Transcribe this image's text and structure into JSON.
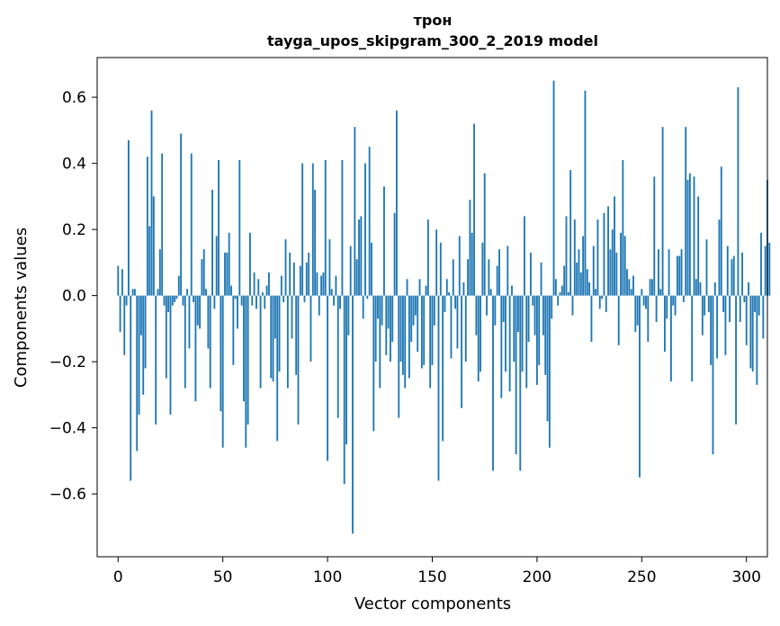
{
  "chart_data": {
    "type": "bar",
    "title": "трон",
    "subtitle": "tayga_upos_skipgram_300_2_2019 model",
    "xlabel": "Vector components",
    "ylabel": "Components values",
    "xlim": [
      -10,
      310
    ],
    "ylim": [
      -0.79,
      0.72
    ],
    "xticks": [
      0,
      50,
      100,
      150,
      200,
      250,
      300
    ],
    "xtick_labels": [
      "0",
      "50",
      "100",
      "150",
      "200",
      "250",
      "300"
    ],
    "yticks": [
      -0.6,
      -0.4,
      -0.2,
      0.0,
      0.2,
      0.4,
      0.6
    ],
    "ytick_labels": [
      "−0.6",
      "−0.4",
      "−0.2",
      "0.0",
      "0.2",
      "0.4",
      "0.6"
    ],
    "bar_color": "#1f77b4",
    "series": [
      {
        "name": "трон",
        "values": [
          0.09,
          -0.11,
          0.08,
          -0.18,
          -0.03,
          0.47,
          -0.56,
          0.02,
          0.02,
          -0.47,
          -0.36,
          -0.12,
          -0.3,
          -0.22,
          0.42,
          0.21,
          0.56,
          0.3,
          -0.39,
          0.02,
          0.14,
          0.43,
          -0.03,
          -0.25,
          -0.05,
          -0.36,
          -0.03,
          -0.02,
          -0.01,
          0.06,
          0.49,
          -0.03,
          -0.28,
          0.02,
          -0.16,
          0.43,
          -0.02,
          -0.32,
          -0.09,
          -0.1,
          0.11,
          0.14,
          0.02,
          -0.16,
          -0.28,
          0.32,
          -0.04,
          0.18,
          0.41,
          -0.35,
          -0.46,
          0.13,
          0.13,
          0.19,
          0.03,
          -0.21,
          -0.01,
          -0.1,
          0.41,
          -0.03,
          -0.32,
          -0.46,
          -0.39,
          0.19,
          -0.03,
          0.07,
          -0.04,
          0.05,
          -0.28,
          0.01,
          -0.04,
          0.03,
          0.07,
          -0.25,
          -0.26,
          -0.13,
          -0.44,
          -0.23,
          0.06,
          -0.02,
          0.17,
          -0.28,
          0.13,
          -0.13,
          0.1,
          -0.24,
          -0.39,
          0.09,
          0.4,
          -0.02,
          0.1,
          0.13,
          -0.2,
          0.4,
          0.32,
          0.07,
          -0.06,
          0.06,
          0.07,
          0.41,
          -0.5,
          0.17,
          0.02,
          -0.03,
          0.06,
          -0.37,
          -0.04,
          0.41,
          -0.57,
          -0.45,
          -0.12,
          0.15,
          -0.72,
          0.51,
          0.11,
          0.23,
          0.24,
          -0.07,
          0.4,
          -0.01,
          0.45,
          0.16,
          -0.41,
          -0.2,
          -0.07,
          -0.28,
          -0.09,
          0.33,
          -0.18,
          -0.1,
          -0.2,
          -0.14,
          0.25,
          0.56,
          -0.37,
          -0.2,
          -0.24,
          -0.28,
          0.05,
          -0.25,
          -0.14,
          -0.09,
          -0.06,
          -0.17,
          0.05,
          -0.22,
          -0.21,
          0.03,
          0.23,
          -0.28,
          -0.21,
          -0.09,
          0.2,
          -0.56,
          0.16,
          -0.44,
          -0.05,
          0.05,
          0.01,
          -0.19,
          0.11,
          -0.04,
          -0.16,
          0.18,
          -0.34,
          0.04,
          -0.2,
          0.11,
          0.29,
          0.19,
          0.52,
          -0.12,
          -0.26,
          -0.23,
          0.16,
          0.37,
          -0.06,
          0.11,
          0.02,
          -0.53,
          -0.09,
          0.09,
          0.14,
          -0.31,
          -0.08,
          -0.23,
          0.15,
          -0.29,
          0.03,
          -0.2,
          -0.48,
          -0.11,
          -0.53,
          -0.23,
          0.24,
          -0.28,
          -0.14,
          0.13,
          -0.03,
          -0.12,
          -0.27,
          -0.21,
          0.1,
          -0.12,
          -0.24,
          -0.38,
          -0.46,
          -0.07,
          0.65,
          0.05,
          -0.03,
          0.01,
          0.03,
          0.09,
          0.24,
          0.01,
          0.38,
          -0.06,
          0.23,
          0.1,
          0.14,
          0.07,
          0.18,
          0.62,
          0.08,
          0.04,
          -0.14,
          0.15,
          0.02,
          0.23,
          -0.04,
          -0.01,
          0.25,
          -0.05,
          0.27,
          0.14,
          0.2,
          0.3,
          0.13,
          -0.15,
          0.19,
          0.41,
          0.18,
          0.08,
          0.05,
          0.02,
          0.06,
          -0.11,
          -0.09,
          -0.55,
          0.02,
          -0.03,
          -0.04,
          -0.14,
          0.05,
          0.05,
          0.36,
          -0.08,
          0.14,
          0.02,
          0.51,
          -0.17,
          -0.07,
          0.14,
          -0.26,
          -0.03,
          -0.06,
          0.12,
          0.12,
          0.14,
          -0.02,
          0.51,
          0.35,
          0.37,
          -0.26,
          0.36,
          0.05,
          0.3,
          0.04,
          -0.12,
          -0.06,
          0.17,
          -0.05,
          -0.21,
          -0.48,
          0.04,
          -0.19,
          0.23,
          0.39,
          -0.05,
          -0.18,
          0.15,
          -0.08,
          0.11,
          0.12,
          -0.39,
          0.63,
          -0.08,
          0.13,
          -0.02,
          -0.15,
          0.04,
          -0.22,
          -0.23,
          -0.05,
          -0.27,
          -0.06,
          0.19,
          -0.13,
          0.15,
          0.35,
          0.16
        ]
      }
    ]
  }
}
